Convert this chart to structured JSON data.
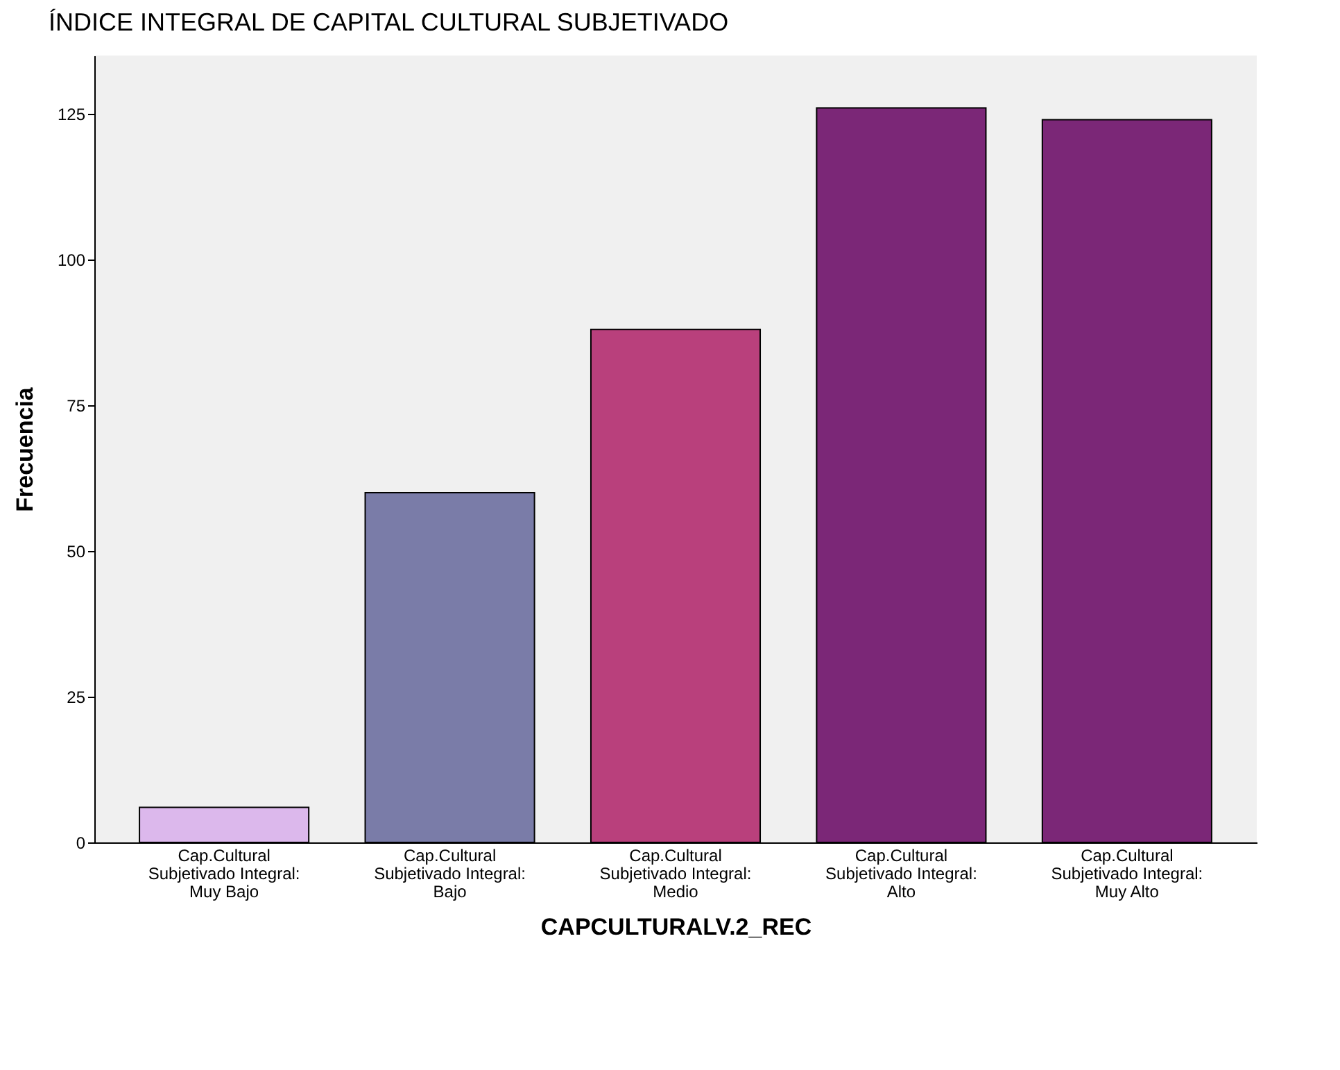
{
  "chart_data": {
    "type": "bar",
    "title": "ÍNDICE INTEGRAL DE CAPITAL CULTURAL SUBJETIVADO",
    "xlabel": "CAPCULTURALV.2_REC",
    "ylabel": "Frecuencia",
    "categories": [
      "Cap.Cultural Subjetivado Integral: Muy Bajo",
      "Cap.Cultural Subjetivado Integral: Bajo",
      "Cap.Cultural Subjetivado Integral: Medio",
      "Cap.Cultural Subjetivado Integral: Alto",
      "Cap.Cultural Subjetivado Integral: Muy Alto"
    ],
    "values": [
      6,
      60,
      88,
      126,
      124
    ],
    "colors": [
      "#dcb8ec",
      "#7a7ca8",
      "#b9407c",
      "#7b2777",
      "#7b2777"
    ],
    "ylim": [
      0,
      135
    ],
    "yticks": [
      0,
      25,
      50,
      75,
      100,
      125
    ],
    "grid": false
  }
}
